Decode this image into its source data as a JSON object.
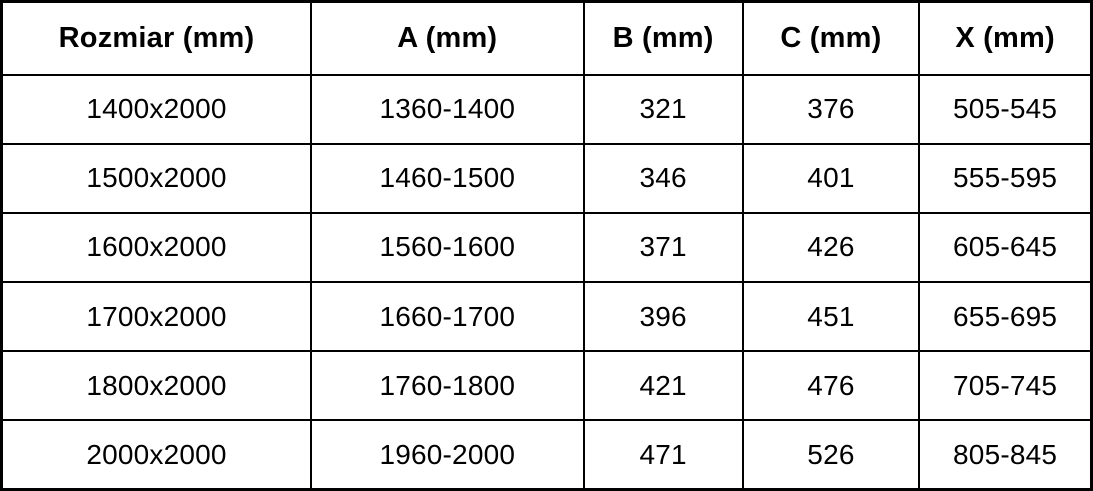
{
  "table": {
    "columns": [
      "Rozmiar (mm)",
      "A (mm)",
      "B (mm)",
      "C (mm)",
      "X (mm)"
    ],
    "rows": [
      [
        "1400x2000",
        "1360-1400",
        "321",
        "376",
        "505-545"
      ],
      [
        "1500x2000",
        "1460-1500",
        "346",
        "401",
        "555-595"
      ],
      [
        "1600x2000",
        "1560-1600",
        "371",
        "426",
        "605-645"
      ],
      [
        "1700x2000",
        "1660-1700",
        "396",
        "451",
        "655-695"
      ],
      [
        "1800x2000",
        "1760-1800",
        "421",
        "476",
        "705-745"
      ],
      [
        "2000x2000",
        "1960-2000",
        "471",
        "526",
        "805-845"
      ]
    ]
  },
  "chart_data": {
    "type": "table",
    "title": "",
    "columns": [
      "Rozmiar (mm)",
      "A (mm)",
      "B (mm)",
      "C (mm)",
      "X (mm)"
    ],
    "rows": [
      {
        "rozmiar": "1400x2000",
        "a": "1360-1400",
        "b": 321,
        "c": 376,
        "x": "505-545"
      },
      {
        "rozmiar": "1500x2000",
        "a": "1460-1500",
        "b": 346,
        "c": 401,
        "x": "555-595"
      },
      {
        "rozmiar": "1600x2000",
        "a": "1560-1600",
        "b": 371,
        "c": 426,
        "x": "605-645"
      },
      {
        "rozmiar": "1700x2000",
        "a": "1660-1700",
        "b": 396,
        "c": 451,
        "x": "655-695"
      },
      {
        "rozmiar": "1800x2000",
        "a": "1760-1800",
        "b": 421,
        "c": 476,
        "x": "705-745"
      },
      {
        "rozmiar": "2000x2000",
        "a": "1960-2000",
        "b": 471,
        "c": 526,
        "x": "805-845"
      }
    ],
    "layout": {
      "grid": true,
      "border_color": "#000000",
      "text_color": "#000000",
      "background": "#ffffff",
      "header_bold": true
    }
  }
}
